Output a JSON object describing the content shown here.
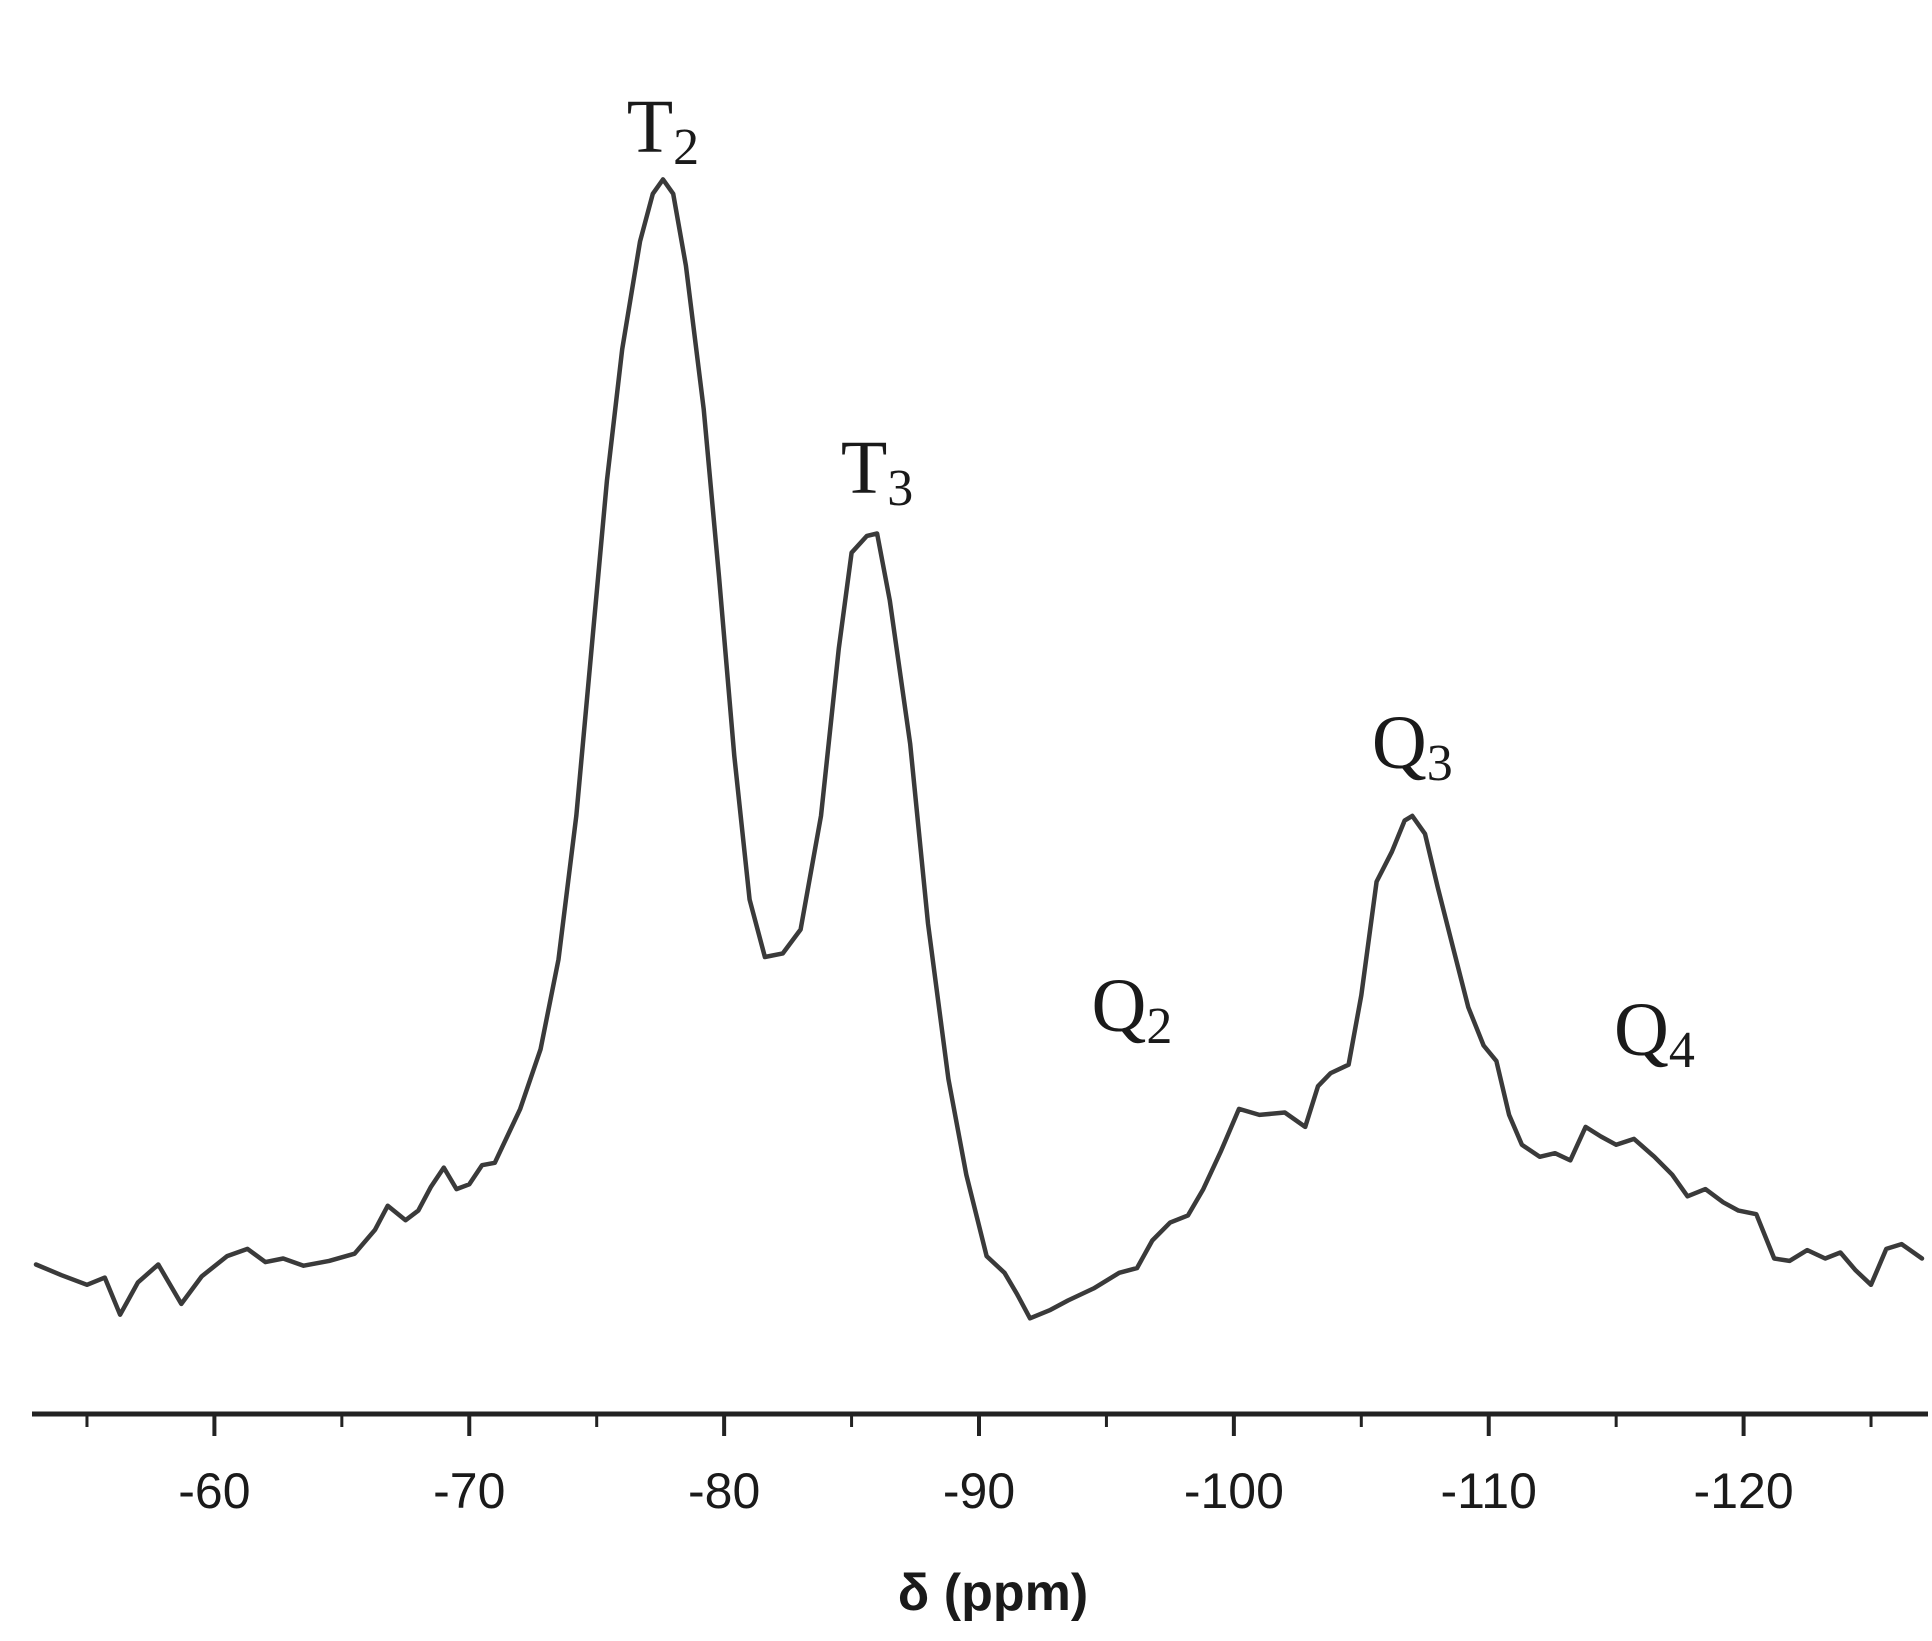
{
  "chart_data": {
    "type": "line",
    "xlabel": "δ (ppm)",
    "ylabel": "",
    "x_reversed": true,
    "xlim": [
      -53,
      -127
    ],
    "ylim": [
      -0.08,
      1.0
    ],
    "ytick_labels_shown": false,
    "grid": false,
    "x_ticks": [
      -60,
      -70,
      -80,
      -90,
      -100,
      -110,
      -120
    ],
    "x_tick_labels": [
      "-60",
      "-70",
      "-80",
      "-90",
      "-100",
      "-110",
      "-120"
    ],
    "series": [
      {
        "color": "#3a3a3a",
        "points": [
          [
            -53.0,
            0.045
          ],
          [
            -54.0,
            0.036
          ],
          [
            -55.0,
            0.028
          ],
          [
            -55.7,
            0.034
          ],
          [
            -56.3,
            0.003
          ],
          [
            -57.0,
            0.03
          ],
          [
            -57.8,
            0.045
          ],
          [
            -58.7,
            0.012
          ],
          [
            -59.5,
            0.035
          ],
          [
            -60.5,
            0.052
          ],
          [
            -61.3,
            0.058
          ],
          [
            -62.0,
            0.047
          ],
          [
            -62.7,
            0.05
          ],
          [
            -63.5,
            0.044
          ],
          [
            -64.5,
            0.048
          ],
          [
            -65.5,
            0.054
          ],
          [
            -66.3,
            0.074
          ],
          [
            -66.8,
            0.094
          ],
          [
            -67.5,
            0.082
          ],
          [
            -68.0,
            0.09
          ],
          [
            -68.5,
            0.11
          ],
          [
            -69.0,
            0.126
          ],
          [
            -69.5,
            0.108
          ],
          [
            -70.0,
            0.112
          ],
          [
            -70.5,
            0.128
          ],
          [
            -71.0,
            0.13
          ],
          [
            -72.0,
            0.175
          ],
          [
            -72.8,
            0.225
          ],
          [
            -73.5,
            0.3
          ],
          [
            -74.2,
            0.42
          ],
          [
            -74.8,
            0.56
          ],
          [
            -75.4,
            0.7
          ],
          [
            -76.0,
            0.81
          ],
          [
            -76.7,
            0.9
          ],
          [
            -77.2,
            0.94
          ],
          [
            -77.6,
            0.952
          ],
          [
            -78.0,
            0.94
          ],
          [
            -78.5,
            0.88
          ],
          [
            -79.2,
            0.76
          ],
          [
            -79.8,
            0.62
          ],
          [
            -80.4,
            0.47
          ],
          [
            -81.0,
            0.35
          ],
          [
            -81.6,
            0.302
          ],
          [
            -82.3,
            0.305
          ],
          [
            -83.0,
            0.325
          ],
          [
            -83.8,
            0.42
          ],
          [
            -84.5,
            0.56
          ],
          [
            -85.0,
            0.64
          ],
          [
            -85.6,
            0.654
          ],
          [
            -86.0,
            0.656
          ],
          [
            -86.5,
            0.6
          ],
          [
            -87.3,
            0.48
          ],
          [
            -88.0,
            0.33
          ],
          [
            -88.8,
            0.2
          ],
          [
            -89.5,
            0.12
          ],
          [
            -90.3,
            0.052
          ],
          [
            -91.0,
            0.038
          ],
          [
            -91.5,
            0.02
          ],
          [
            -92.0,
            0.0
          ],
          [
            -92.8,
            0.007
          ],
          [
            -93.5,
            0.015
          ],
          [
            -94.5,
            0.025
          ],
          [
            -95.5,
            0.038
          ],
          [
            -96.2,
            0.042
          ],
          [
            -96.8,
            0.065
          ],
          [
            -97.5,
            0.08
          ],
          [
            -98.2,
            0.086
          ],
          [
            -98.8,
            0.108
          ],
          [
            -99.5,
            0.14
          ],
          [
            -100.2,
            0.175
          ],
          [
            -101.0,
            0.17
          ],
          [
            -102.0,
            0.172
          ],
          [
            -102.8,
            0.16
          ],
          [
            -103.3,
            0.194
          ],
          [
            -103.8,
            0.205
          ],
          [
            -104.5,
            0.212
          ],
          [
            -105.0,
            0.27
          ],
          [
            -105.6,
            0.365
          ],
          [
            -106.2,
            0.39
          ],
          [
            -106.7,
            0.416
          ],
          [
            -107.0,
            0.42
          ],
          [
            -107.5,
            0.405
          ],
          [
            -108.0,
            0.36
          ],
          [
            -108.6,
            0.31
          ],
          [
            -109.2,
            0.26
          ],
          [
            -109.8,
            0.228
          ],
          [
            -110.3,
            0.215
          ],
          [
            -110.8,
            0.17
          ],
          [
            -111.3,
            0.145
          ],
          [
            -112.0,
            0.135
          ],
          [
            -112.6,
            0.138
          ],
          [
            -113.2,
            0.132
          ],
          [
            -113.8,
            0.16
          ],
          [
            -114.4,
            0.152
          ],
          [
            -115.0,
            0.145
          ],
          [
            -115.7,
            0.15
          ],
          [
            -116.5,
            0.135
          ],
          [
            -117.2,
            0.12
          ],
          [
            -117.8,
            0.102
          ],
          [
            -118.5,
            0.108
          ],
          [
            -119.2,
            0.097
          ],
          [
            -119.8,
            0.09
          ],
          [
            -120.5,
            0.087
          ],
          [
            -121.2,
            0.05
          ],
          [
            -121.8,
            0.048
          ],
          [
            -122.5,
            0.057
          ],
          [
            -123.2,
            0.05
          ],
          [
            -123.8,
            0.055
          ],
          [
            -124.4,
            0.04
          ],
          [
            -125.0,
            0.028
          ],
          [
            -125.6,
            0.058
          ],
          [
            -126.2,
            0.062
          ],
          [
            -127.0,
            0.05
          ]
        ]
      }
    ],
    "annotations": [
      {
        "id": "T2",
        "main": "T",
        "sub": "2",
        "x": -77.6,
        "y": 0.975
      },
      {
        "id": "T3",
        "main": "T",
        "sub": "3",
        "x": -86.0,
        "y": 0.69
      },
      {
        "id": "Q2",
        "main": "Q",
        "sub": "2",
        "x": -96.0,
        "y": 0.24
      },
      {
        "id": "Q3",
        "main": "Q",
        "sub": "3",
        "x": -107.0,
        "y": 0.46
      },
      {
        "id": "Q4",
        "main": "Q",
        "sub": "4",
        "x": -116.5,
        "y": 0.22
      }
    ]
  }
}
